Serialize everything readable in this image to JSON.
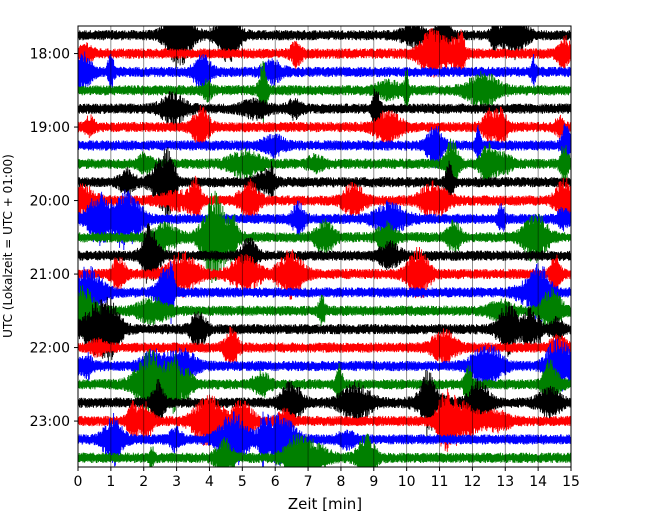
{
  "chart_data": {
    "type": "line",
    "subtype": "seismogram-helicorder",
    "title": "",
    "xlabel": "Zeit  [min]",
    "ylabel": "UTC (Lokalzeit = UTC + 01:00)",
    "x_range": [
      0,
      15
    ],
    "x_ticks": [
      "0",
      "1",
      "2",
      "3",
      "4",
      "5",
      "6",
      "7",
      "8",
      "9",
      "10",
      "11",
      "12",
      "13",
      "14",
      "15"
    ],
    "y_ticks": [
      "18:00",
      "19:00",
      "20:00",
      "21:00",
      "22:00",
      "23:00"
    ],
    "trace_interval_minutes": 15,
    "time_range_utc": [
      "17:45",
      "23:45"
    ],
    "trace_colors": [
      "#000000",
      "#ff0000",
      "#0000ff",
      "#008000"
    ],
    "grid": true,
    "legend": "none",
    "traces": [
      {
        "start": "17:45",
        "color": "#000000"
      },
      {
        "start": "18:00",
        "color": "#ff0000"
      },
      {
        "start": "18:15",
        "color": "#0000ff"
      },
      {
        "start": "18:30",
        "color": "#008000"
      },
      {
        "start": "18:45",
        "color": "#000000"
      },
      {
        "start": "19:00",
        "color": "#ff0000"
      },
      {
        "start": "19:15",
        "color": "#0000ff"
      },
      {
        "start": "19:30",
        "color": "#008000"
      },
      {
        "start": "19:45",
        "color": "#000000"
      },
      {
        "start": "20:00",
        "color": "#ff0000"
      },
      {
        "start": "20:15",
        "color": "#0000ff"
      },
      {
        "start": "20:30",
        "color": "#008000"
      },
      {
        "start": "20:45",
        "color": "#000000"
      },
      {
        "start": "21:00",
        "color": "#ff0000"
      },
      {
        "start": "21:15",
        "color": "#0000ff"
      },
      {
        "start": "21:30",
        "color": "#008000"
      },
      {
        "start": "21:45",
        "color": "#000000"
      },
      {
        "start": "22:00",
        "color": "#ff0000"
      },
      {
        "start": "22:15",
        "color": "#0000ff"
      },
      {
        "start": "22:30",
        "color": "#008000"
      },
      {
        "start": "22:45",
        "color": "#000000"
      },
      {
        "start": "23:00",
        "color": "#ff0000"
      },
      {
        "start": "23:15",
        "color": "#0000ff"
      },
      {
        "start": "23:30",
        "color": "#008000"
      }
    ]
  }
}
